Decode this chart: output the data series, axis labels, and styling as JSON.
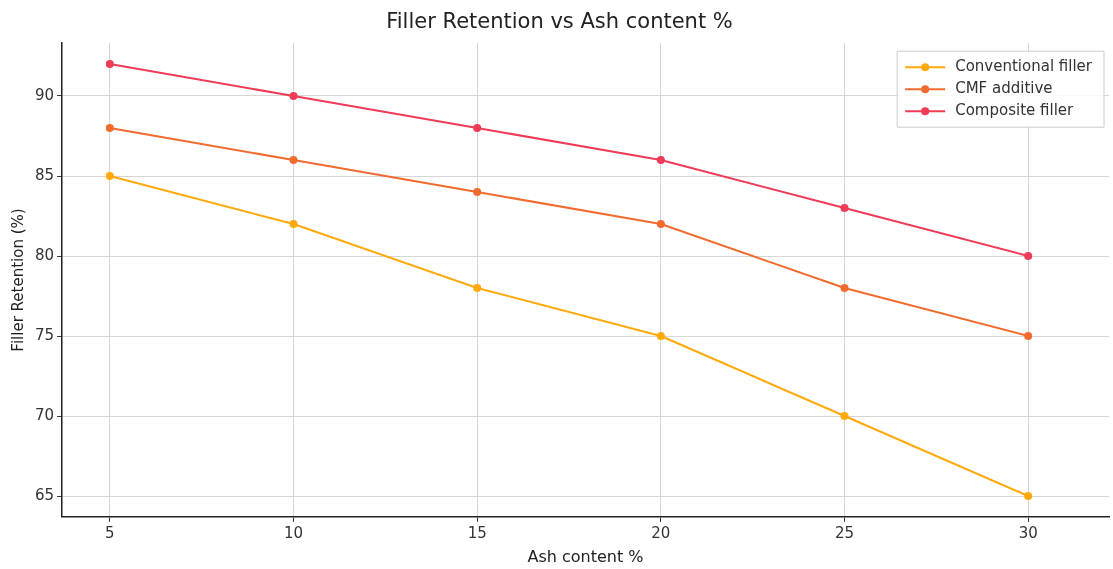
{
  "chart_data": {
    "type": "line",
    "title": "Filler Retention vs Ash content %",
    "xlabel": "Ash content %",
    "ylabel": "Filler Retention (%)",
    "x": [
      5,
      10,
      15,
      20,
      25,
      30
    ],
    "series": [
      {
        "name": "Conventional filler",
        "color": "#ffa90a",
        "values": [
          85,
          82,
          78,
          75,
          70,
          65
        ]
      },
      {
        "name": "CMF additive",
        "color": "#f26b2e",
        "values": [
          88,
          86,
          84,
          82,
          78,
          75
        ]
      },
      {
        "name": "Composite filler",
        "color": "#ef3b57",
        "values": [
          92,
          90,
          88,
          86,
          83,
          80
        ]
      }
    ],
    "xlim": [
      3.7,
      32.2
    ],
    "xticks": [
      5,
      10,
      15,
      20,
      25,
      30
    ],
    "ylim": [
      63.7,
      93.3
    ],
    "yticks": [
      65,
      70,
      75,
      80,
      85,
      90
    ],
    "grid": true,
    "legend": "top right",
    "marker": "circle",
    "line_style": "solid"
  }
}
